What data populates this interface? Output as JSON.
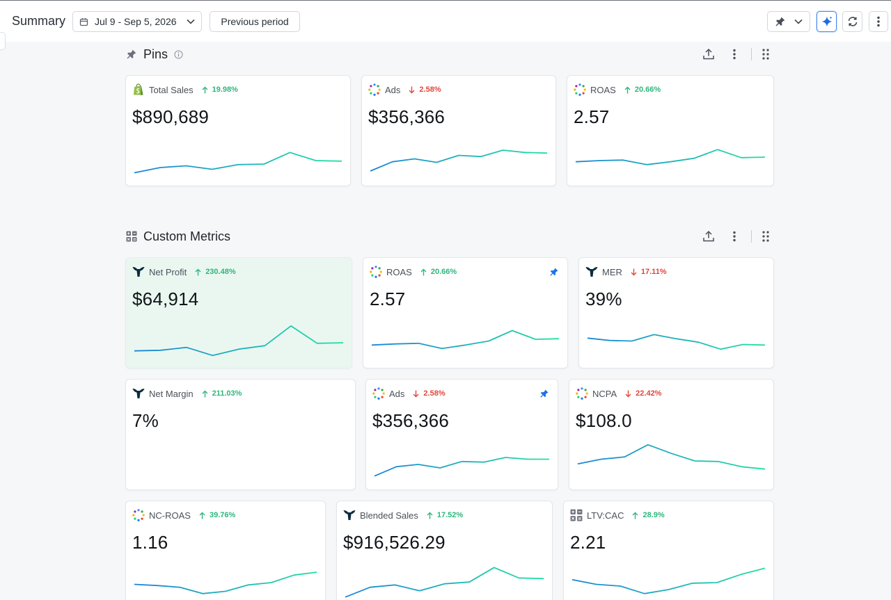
{
  "header": {
    "title": "Summary",
    "date_range": "Jul 9 - Sep 5, 2026",
    "compare_label": "Previous period"
  },
  "colors": {
    "spark_start": "#1b84d6",
    "spark_end": "#22dfa0",
    "positive": "#2db67c",
    "negative": "#e2453b",
    "highlight_bg": "#eaf7f1",
    "pin_blue": "#1a73e8"
  },
  "sections": {
    "pins": {
      "title": "Pins"
    },
    "custom": {
      "title": "Custom Metrics"
    }
  },
  "pins": [
    {
      "name": "Total Sales",
      "icon": "shopify-icon",
      "change": "19.98%",
      "direction": "up",
      "value": "$890,689",
      "spark": [
        3,
        12,
        15,
        9,
        17,
        18,
        38,
        24,
        23
      ]
    },
    {
      "name": "Ads",
      "icon": "ads-dots-icon",
      "change": "2.58%",
      "direction": "down",
      "value": "$356,366",
      "spark": [
        6,
        22,
        27,
        21,
        33,
        31,
        42,
        38,
        37
      ]
    },
    {
      "name": "ROAS",
      "icon": "ads-dots-icon",
      "change": "20.66%",
      "direction": "up",
      "value": "2.57",
      "spark": [
        22,
        24,
        25,
        17,
        22,
        28,
        43,
        29,
        30
      ]
    }
  ],
  "custom_metrics": [
    {
      "name": "Net Profit",
      "icon": "triple-whale-icon",
      "change": "230.48%",
      "direction": "up",
      "value": "$64,914",
      "highlight": true,
      "pinned": false,
      "spark": [
        10,
        11,
        16,
        2,
        13,
        19,
        53,
        23,
        24
      ]
    },
    {
      "name": "ROAS",
      "icon": "ads-dots-icon",
      "change": "20.66%",
      "direction": "up",
      "value": "2.57",
      "pinned": true,
      "spark": [
        20,
        22,
        23,
        14,
        20,
        27,
        45,
        30,
        31
      ]
    },
    {
      "name": "MER",
      "icon": "triple-whale-icon",
      "change": "17.11%",
      "direction": "down",
      "value": "39%",
      "pinned": false,
      "spark": [
        32,
        28,
        27,
        38,
        31,
        25,
        13,
        21,
        20
      ]
    },
    {
      "name": "Net Margin",
      "icon": "triple-whale-icon",
      "change": "211.03%",
      "direction": "up",
      "value": "7%",
      "pinned": false,
      "spark": []
    },
    {
      "name": "Ads",
      "icon": "ads-dots-icon",
      "change": "2.58%",
      "direction": "down",
      "value": "$356,366",
      "pinned": true,
      "spark": [
        4,
        20,
        24,
        18,
        29,
        28,
        36,
        33,
        33
      ]
    },
    {
      "name": "NCPA",
      "icon": "ads-dots-icon",
      "change": "22.42%",
      "direction": "down",
      "value": "$108.0",
      "pinned": false,
      "spark": [
        25,
        33,
        37,
        58,
        43,
        30,
        29,
        20,
        16
      ]
    },
    {
      "name": "NC-ROAS",
      "icon": "ads-dots-icon",
      "change": "39.76%",
      "direction": "up",
      "value": "1.16",
      "pinned": false,
      "spark": [
        27,
        25,
        22,
        11,
        15,
        26,
        30,
        43,
        48
      ]
    },
    {
      "name": "Blended Sales",
      "icon": "triple-whale-icon",
      "change": "17.52%",
      "direction": "up",
      "value": "$916,526.29",
      "pinned": false,
      "spark": [
        5,
        22,
        26,
        16,
        28,
        31,
        56,
        38,
        37
      ]
    },
    {
      "name": "LTV:CAC",
      "icon": "calculator-icon",
      "change": "28.9%",
      "direction": "up",
      "value": "2.21",
      "pinned": false,
      "spark": [
        35,
        27,
        24,
        11,
        18,
        29,
        30,
        44,
        55
      ]
    }
  ]
}
